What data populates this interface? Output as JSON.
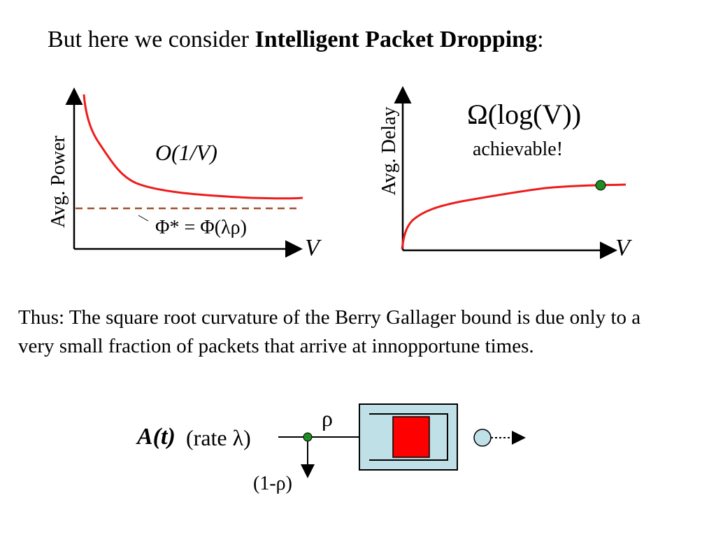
{
  "title": {
    "prefix": "But here we consider ",
    "bold": "Intelligent Packet Dropping",
    "suffix": ":"
  },
  "left_plot": {
    "ylabel": "Avg. Power",
    "xlabel": "V",
    "curve_label": "O(1/V)",
    "baseline_label": "Φ* = Φ(λρ)"
  },
  "right_plot": {
    "ylabel": "Avg. Delay",
    "xlabel": "V",
    "bound_label": "Ω(log(V))",
    "note": "achievable!"
  },
  "body_text": "Thus:  The square root curvature of the Berry Gallager bound is due only to a very small fraction of packets that arrive at innopportune times.",
  "queue_diagram": {
    "arrival_label": "A(t)",
    "rate_label": "(rate λ)",
    "accept_label": "ρ",
    "drop_label": "(1-ρ)"
  },
  "colors": {
    "curve": "#ee1c1c",
    "baseline": "#a0522d",
    "marker": "#1e8c1e",
    "queue_box": "#bfe0e6",
    "queue_fill": "#ff0000",
    "server": "#bfe0e6"
  }
}
